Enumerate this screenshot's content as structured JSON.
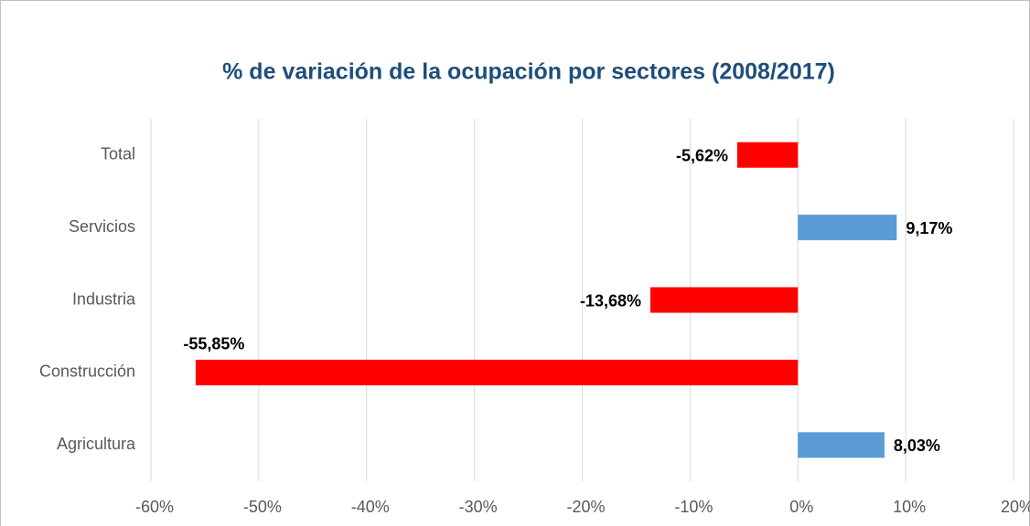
{
  "chart_data": {
    "type": "barh",
    "title": "% de variación de la ocupación por sectores (2008/2017)",
    "categories": [
      "Total",
      "Servicios",
      "Industria",
      "Construcción",
      "Agricultura"
    ],
    "values": [
      -5.62,
      9.17,
      -13.68,
      -55.85,
      8.03
    ],
    "value_labels": [
      "-5,62%",
      "9,17%",
      "-13,68%",
      "-55,85%",
      "8,03%"
    ],
    "colors": [
      "#ff0000",
      "#5b9bd5",
      "#ff0000",
      "#ff0000",
      "#5b9bd5"
    ],
    "xlim": [
      -60,
      20
    ],
    "xticks": [
      {
        "value": -60,
        "label": "-60%"
      },
      {
        "value": -50,
        "label": "-50%"
      },
      {
        "value": -40,
        "label": "-40%"
      },
      {
        "value": -30,
        "label": "-30%"
      },
      {
        "value": -20,
        "label": "-20%"
      },
      {
        "value": -10,
        "label": "-10%"
      },
      {
        "value": 0,
        "label": "0%"
      },
      {
        "value": 10,
        "label": "10%"
      },
      {
        "value": 20,
        "label": "20%"
      }
    ],
    "grid": true
  }
}
